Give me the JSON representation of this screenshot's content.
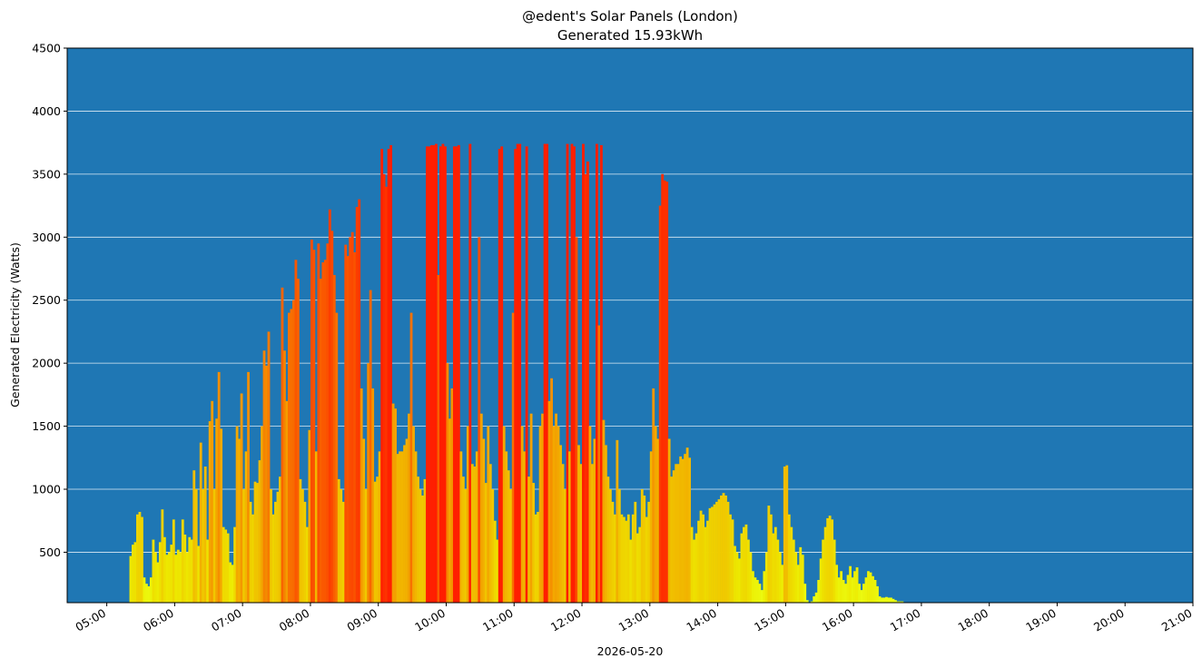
{
  "chart_data": {
    "type": "bar",
    "title": "@edent's Solar Panels (London)",
    "subtitle": "Generated 15.93kWh",
    "xlabel": "2026-05-20",
    "ylabel": "Generated Electricity (Watts)",
    "xlim": [
      "04:25",
      "21:00"
    ],
    "ylim": [
      100,
      4500
    ],
    "y_ticks": [
      500,
      1000,
      1500,
      2000,
      2500,
      3000,
      3500,
      4000,
      4500
    ],
    "x_ticks": [
      "05:00",
      "06:00",
      "07:00",
      "08:00",
      "09:00",
      "10:00",
      "11:00",
      "12:00",
      "13:00",
      "14:00",
      "15:00",
      "16:00",
      "17:00",
      "18:00",
      "19:00",
      "20:00",
      "21:00"
    ],
    "grid": "horizontal",
    "background_color": "#1f77b4",
    "colormap": "autumn_r (yellow = low, red = high)",
    "interval_minutes": 2,
    "series": [
      {
        "x_start": "05:20",
        "values": [
          470,
          560,
          580,
          800,
          820,
          780,
          300,
          250,
          230,
          300,
          600,
          500,
          420,
          580,
          840,
          620,
          480,
          500,
          560,
          760,
          480,
          520,
          500,
          760,
          640,
          500,
          620,
          600,
          1150,
          1000,
          550,
          1370,
          1000,
          1180,
          600,
          1540,
          1700,
          1000,
          1560,
          1930,
          1480,
          700,
          680,
          650,
          420,
          400,
          700,
          1500,
          1400,
          1760,
          1000,
          1300,
          1930,
          900,
          800,
          1060,
          1050,
          1230,
          1500,
          2100,
          1980,
          2250,
          1000,
          800,
          900,
          980,
          1100,
          2600,
          2100,
          1700,
          2400,
          2430,
          2500,
          2820,
          2670,
          1080,
          1000,
          900,
          700,
          1470,
          2980,
          2900,
          1300,
          2950,
          2670,
          2800,
          2820,
          2950,
          3220,
          3050,
          2700,
          2400,
          1080,
          1000,
          900,
          2940,
          2850,
          3000,
          3040,
          2880,
          3240,
          3300,
          1800,
          1400,
          1000,
          2000,
          2580,
          1800,
          1060,
          1100,
          1300,
          3700,
          3500,
          3400,
          3700,
          3730,
          1680,
          1640,
          1280,
          1300,
          1300,
          1350,
          1400,
          1600,
          2400,
          1500,
          1300,
          1100,
          1000,
          950,
          1080,
          3720,
          3720,
          3730,
          3730,
          3740,
          2700,
          3720,
          3740,
          3720,
          2000,
          1560,
          1800,
          3720,
          3720,
          3730,
          1300,
          1100,
          1000,
          1500,
          3740,
          1200,
          1180,
          1300,
          3000,
          1600,
          1400,
          1050,
          1500,
          1200,
          1000,
          750,
          600,
          3700,
          3720,
          1500,
          1300,
          1150,
          1000,
          2400,
          3700,
          3740,
          3740,
          1500,
          1300,
          3720,
          1100,
          1600,
          1050,
          800,
          820,
          1500,
          1600,
          3740,
          3740,
          1700,
          1880,
          1500,
          1600,
          1500,
          1350,
          1200,
          1000,
          3740,
          1300,
          3740,
          3720,
          3000,
          1350,
          1200,
          3740,
          3500,
          3600,
          1500,
          1200,
          1400,
          3740,
          2300,
          3730,
          1550,
          1350,
          1100,
          1000,
          900,
          800,
          1390,
          1000,
          800,
          780,
          750,
          800,
          600,
          800,
          900,
          650,
          700,
          1000,
          950,
          780,
          900,
          1300,
          1800,
          1500,
          1400,
          3250,
          3500,
          3450,
          3440,
          1400,
          1100,
          1150,
          1200,
          1200,
          1260,
          1240,
          1280,
          1330,
          1250,
          700,
          600,
          650,
          750,
          830,
          800,
          700,
          750,
          850,
          860,
          880,
          900,
          920,
          950,
          970,
          950,
          900,
          800,
          760,
          550,
          500,
          450,
          650,
          700,
          720,
          600,
          500,
          350,
          300,
          280,
          250,
          200,
          350,
          500,
          870,
          800,
          650,
          700,
          600,
          500,
          400,
          1180,
          1190,
          800,
          700,
          600,
          500,
          400,
          540,
          480,
          250,
          120,
          100,
          110,
          150,
          180,
          280,
          450,
          600,
          700,
          770,
          790,
          760,
          600,
          400,
          300,
          350,
          280,
          250,
          320,
          390,
          300,
          350,
          380,
          250,
          200,
          250,
          300,
          350,
          340,
          310,
          280,
          230,
          150,
          140,
          140,
          145,
          140,
          140,
          130,
          120,
          110,
          110,
          110
        ]
      }
    ]
  }
}
